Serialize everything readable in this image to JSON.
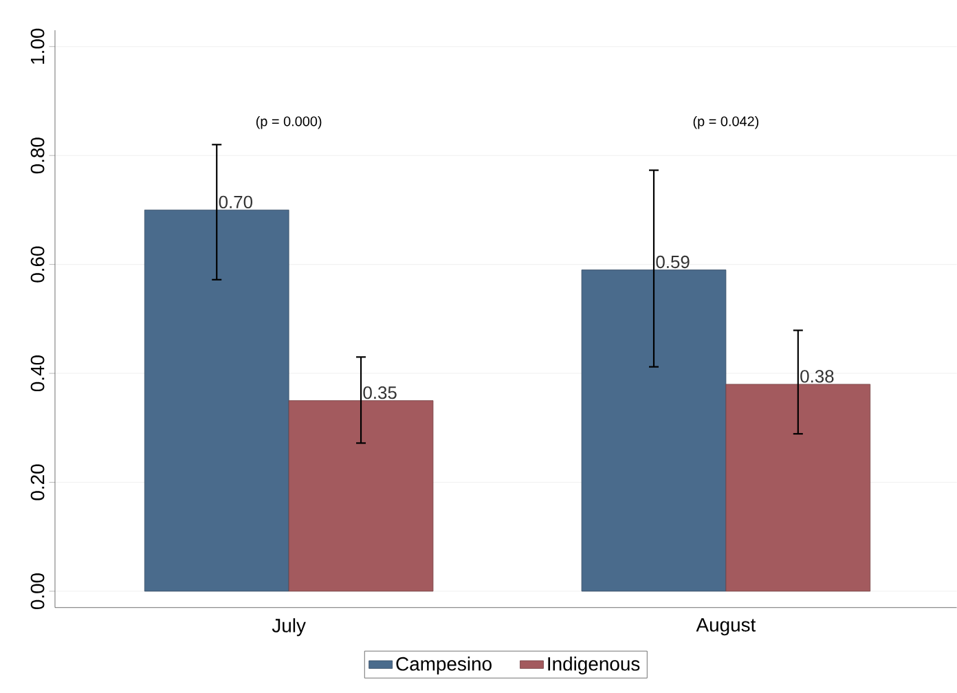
{
  "chart_data": {
    "type": "bar",
    "categories": [
      "July",
      "August"
    ],
    "series": [
      {
        "name": "Campesino",
        "color": "#4a6b8c",
        "values": [
          0.7,
          0.59
        ],
        "errors": [
          [
            0.572,
            0.82
          ],
          [
            0.412,
            0.773
          ]
        ],
        "value_labels": [
          "0.70",
          "0.59"
        ]
      },
      {
        "name": "Indigenous",
        "color": "#a35a5e",
        "values": [
          0.35,
          0.38
        ],
        "errors": [
          [
            0.272,
            0.43
          ],
          [
            0.289,
            0.479
          ]
        ],
        "value_labels": [
          "0.35",
          "0.38"
        ]
      }
    ],
    "ylim": [
      -0.03,
      1.03
    ],
    "yticks": [
      {
        "value": 0,
        "label": "0.00"
      },
      {
        "value": 0.2,
        "label": "0.20"
      },
      {
        "value": 0.4,
        "label": "0.40"
      },
      {
        "value": 0.6,
        "label": "0.60"
      },
      {
        "value": 0.8,
        "label": "0.80"
      },
      {
        "value": 1,
        "label": "1.00"
      }
    ],
    "annotations": [
      "(p = 0.000)",
      "(p = 0.042)"
    ],
    "grid": "y",
    "legend": "bottom"
  }
}
